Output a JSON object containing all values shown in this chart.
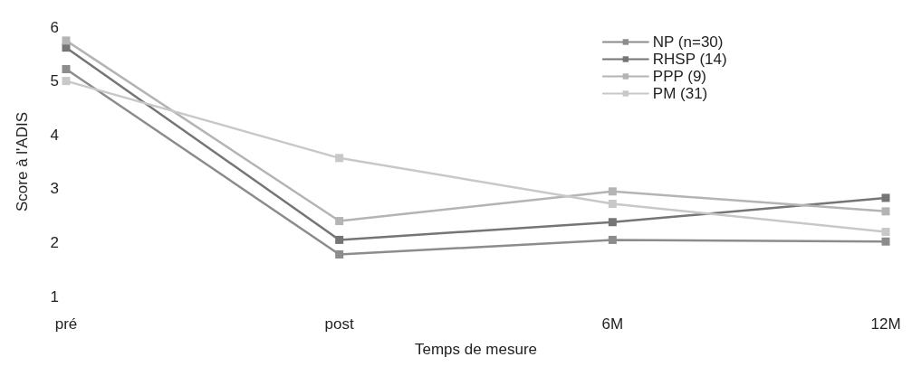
{
  "chart_data": {
    "type": "line",
    "xlabel": "Temps de mesure",
    "ylabel": "Score à l'ADIS",
    "categories": [
      "pré",
      "post",
      "6M",
      "12M"
    ],
    "series": [
      {
        "name": "NP (n=30)",
        "color": "#8c8c8c",
        "values": [
          5.22,
          1.78,
          2.05,
          2.02
        ]
      },
      {
        "name": "RHSP (14)",
        "color": "#757575",
        "values": [
          5.62,
          2.05,
          2.38,
          2.83
        ]
      },
      {
        "name": "PPP (9)",
        "color": "#b4b4b4",
        "values": [
          5.75,
          2.4,
          2.95,
          2.58
        ]
      },
      {
        "name": "PM (31)",
        "color": "#c8c8c8",
        "values": [
          5.0,
          3.57,
          2.72,
          2.2
        ]
      }
    ],
    "ylim": [
      1,
      6
    ],
    "yticks": [
      1,
      2,
      3,
      4,
      5,
      6
    ],
    "grid": false,
    "legend": "top right",
    "marker": "square",
    "line_style": "solid"
  }
}
